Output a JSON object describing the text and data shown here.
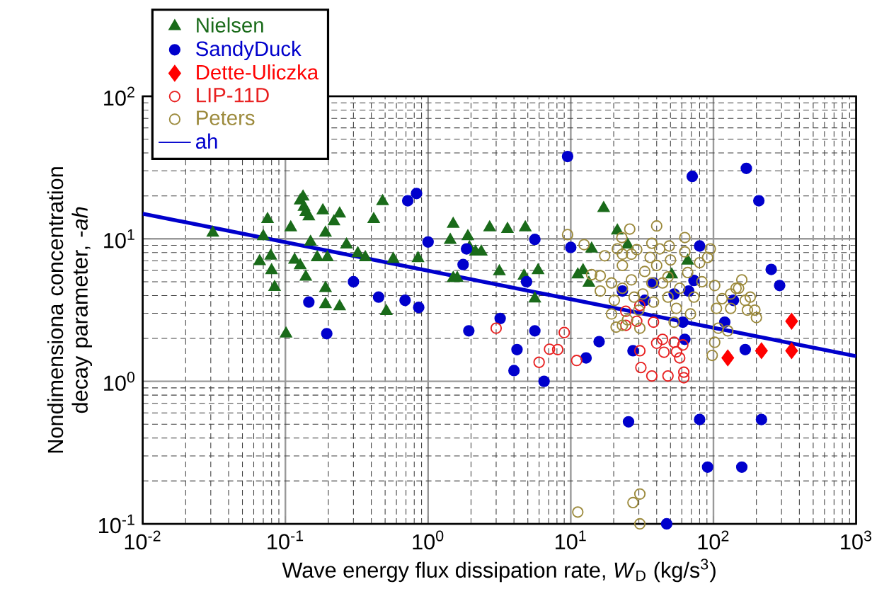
{
  "chart_data": {
    "type": "scatter",
    "xlabel": "Wave energy flux dissipation rate, *W*$_{D}$ (kg/s$^{3}$)",
    "ylabel": "Nondimensiona concentration decay parameter, -*ah*",
    "log": "xy",
    "grid": true,
    "legend": "top left",
    "xlim": [
      0.01,
      1000
    ],
    "ylim": [
      0.1,
      100
    ],
    "xticks": [
      {
        "value": 0.01,
        "label": "10$^{-2}$"
      },
      {
        "value": 0.1,
        "label": "10$^{-1}$"
      },
      {
        "value": 1,
        "label": "10$^{0}$"
      },
      {
        "value": 10,
        "label": "10$^{1}$"
      },
      {
        "value": 100,
        "label": "10$^{2}$"
      },
      {
        "value": 1000,
        "label": "10$^{3}$"
      }
    ],
    "yticks": [
      {
        "value": 0.1,
        "label": "10$^{-1}$"
      },
      {
        "value": 1,
        "label": "10$^{0}$"
      },
      {
        "value": 10,
        "label": "10$^{1}$"
      },
      {
        "value": 100,
        "label": "10$^{2}$"
      }
    ],
    "series": [
      {
        "name": "Nielsen",
        "color": "#1a6b1a",
        "marker": "triangle",
        "x": [
          0.031,
          0.07,
          0.075,
          0.066,
          0.079,
          0.08,
          0.084,
          0.101,
          0.109,
          0.116,
          0.127,
          0.133,
          0.135,
          0.139,
          0.146,
          0.127,
          0.139,
          0.15,
          0.167,
          0.183,
          0.191,
          0.191,
          0.197,
          0.219,
          0.24,
          0.191,
          0.24,
          0.268,
          0.322,
          0.363,
          0.416,
          0.48,
          0.51,
          0.57,
          0.85,
          1.5,
          1.43,
          1.5,
          1.6,
          1.9,
          1.95,
          2.15,
          2.36,
          2.7,
          3.16,
          3.6,
          4.8,
          4.7,
          5.9,
          5.6,
          11.2,
          12.2,
          14,
          17,
          21.2,
          25,
          13.4,
          66,
          51
        ],
        "values": [
          11,
          10.4,
          13.7,
          6.95,
          7.6,
          6,
          4.57,
          2.16,
          12,
          7.1,
          18.5,
          19.7,
          16.7,
          15.4,
          14.3,
          6.5,
          5.4,
          9.5,
          7.4,
          15.8,
          11,
          4.5,
          7.4,
          13.2,
          15,
          3.47,
          3.35,
          9.1,
          7.9,
          7.4,
          13.7,
          18.3,
          3.1,
          7.2,
          7.3,
          12.7,
          9.8,
          5.3,
          5.3,
          10.4,
          8.7,
          8.1,
          8.1,
          12,
          5.9,
          11.7,
          12,
          5.5,
          6,
          3.8,
          5.6,
          6,
          8.5,
          16.4,
          11.4,
          9.1,
          4.9,
          7,
          5.6
        ]
      },
      {
        "name": "SandyDuck",
        "color": "#0000cc",
        "marker": "circle",
        "x": [
          9.5,
          0.72,
          0.83,
          1,
          0.3,
          0.146,
          0.195,
          0.45,
          0.69,
          0.86,
          1.86,
          1.76,
          1.93,
          3.2,
          5.6,
          4.9,
          5.6,
          4.2,
          4,
          6.5,
          10,
          12.8,
          15.8,
          25.4,
          27.3,
          47,
          71,
          80,
          91,
          158,
          170,
          208,
          217,
          167,
          254,
          291,
          80,
          67,
          73,
          53,
          63,
          61,
          33,
          138,
          120,
          38,
          23
        ],
        "values": [
          37.8,
          18.5,
          20.8,
          9.5,
          5,
          3.6,
          2.16,
          3.9,
          3.7,
          3.3,
          8.5,
          6.6,
          2.26,
          2.76,
          9.9,
          5,
          2.26,
          1.67,
          1.19,
          1,
          8.7,
          1.46,
          1.9,
          0.52,
          1.64,
          0.1,
          27.4,
          0.54,
          0.25,
          0.25,
          31.2,
          18.5,
          0.54,
          1.67,
          6.1,
          4.7,
          8.9,
          4.3,
          5.1,
          4.1,
          1.97,
          2.6,
          3.7,
          3.7,
          2.6,
          4.9,
          4.3
        ]
      },
      {
        "name": "Dette-Uliczka",
        "color": "#ff0000",
        "marker": "diamond",
        "x": [
          126,
          217,
          353,
          353
        ],
        "values": [
          1.46,
          1.64,
          2.64,
          1.64
        ]
      },
      {
        "name": "LIP-11D",
        "color": "#e82020",
        "marker": "circle",
        "x": [
          3,
          9,
          7.1,
          8.1,
          6,
          11,
          24.3,
          29,
          30.5,
          31,
          37,
          38,
          40,
          44,
          45,
          48,
          53,
          55,
          58,
          61,
          62,
          62,
          30.5,
          24.3
        ],
        "values": [
          2.36,
          2.2,
          1.68,
          1.67,
          1.36,
          1.4,
          3.1,
          2.64,
          1.64,
          1.25,
          1.09,
          2.6,
          1.85,
          1.97,
          1.6,
          1.09,
          1.88,
          1.61,
          1.46,
          1.8,
          1.16,
          1.06,
          3.4,
          2.47
        ]
      },
      {
        "name": "Peters",
        "color": "#9c8a3c",
        "marker": "circle",
        "x": [
          9.5,
          11.2,
          27.3,
          30.5,
          30.5,
          12.4,
          14,
          16.1,
          16.1,
          17.3,
          19.3,
          19.3,
          20.2,
          21.2,
          22.8,
          23,
          23,
          25.9,
          26.6,
          26.6,
          27.8,
          29,
          30,
          30.5,
          32,
          33,
          36,
          37,
          38,
          40,
          42,
          44,
          48,
          48,
          49,
          50,
          53,
          55,
          58,
          63,
          63,
          66,
          69,
          73,
          80,
          83,
          91,
          95,
          102,
          105,
          98,
          102,
          108,
          115,
          126,
          132,
          144,
          150,
          158,
          167,
          173,
          181,
          195,
          200,
          132,
          25,
          23,
          20.8,
          23,
          37,
          40
        ],
        "values": [
          10.7,
          0.121,
          0.141,
          0.162,
          0.1,
          9.1,
          5.6,
          5.5,
          4.3,
          7.6,
          2.97,
          4.9,
          3.7,
          8.5,
          10.2,
          6.5,
          4.5,
          11.7,
          7.8,
          5.15,
          3.9,
          8.4,
          3.16,
          2.36,
          4.1,
          5.9,
          7.4,
          4.9,
          3.6,
          6.5,
          8.5,
          4.9,
          3.9,
          5.4,
          8.9,
          7.1,
          2.6,
          3.25,
          4.5,
          10.2,
          8.1,
          5.8,
          2.97,
          3.9,
          6.8,
          5,
          7.4,
          8.5,
          4.7,
          3.25,
          1.52,
          1.88,
          2.36,
          3.8,
          2.26,
          3.25,
          4.5,
          4.5,
          5.15,
          3.7,
          3.16,
          3.9,
          3.16,
          2.8,
          4.1,
          2.7,
          2.47,
          2.4,
          7.8,
          9.3,
          12.3
        ]
      },
      {
        "name": "ah",
        "color": "#0000cc",
        "type": "line",
        "marker": "none",
        "x": [
          0.01,
          1000
        ],
        "values": [
          15,
          1.5
        ]
      }
    ]
  }
}
